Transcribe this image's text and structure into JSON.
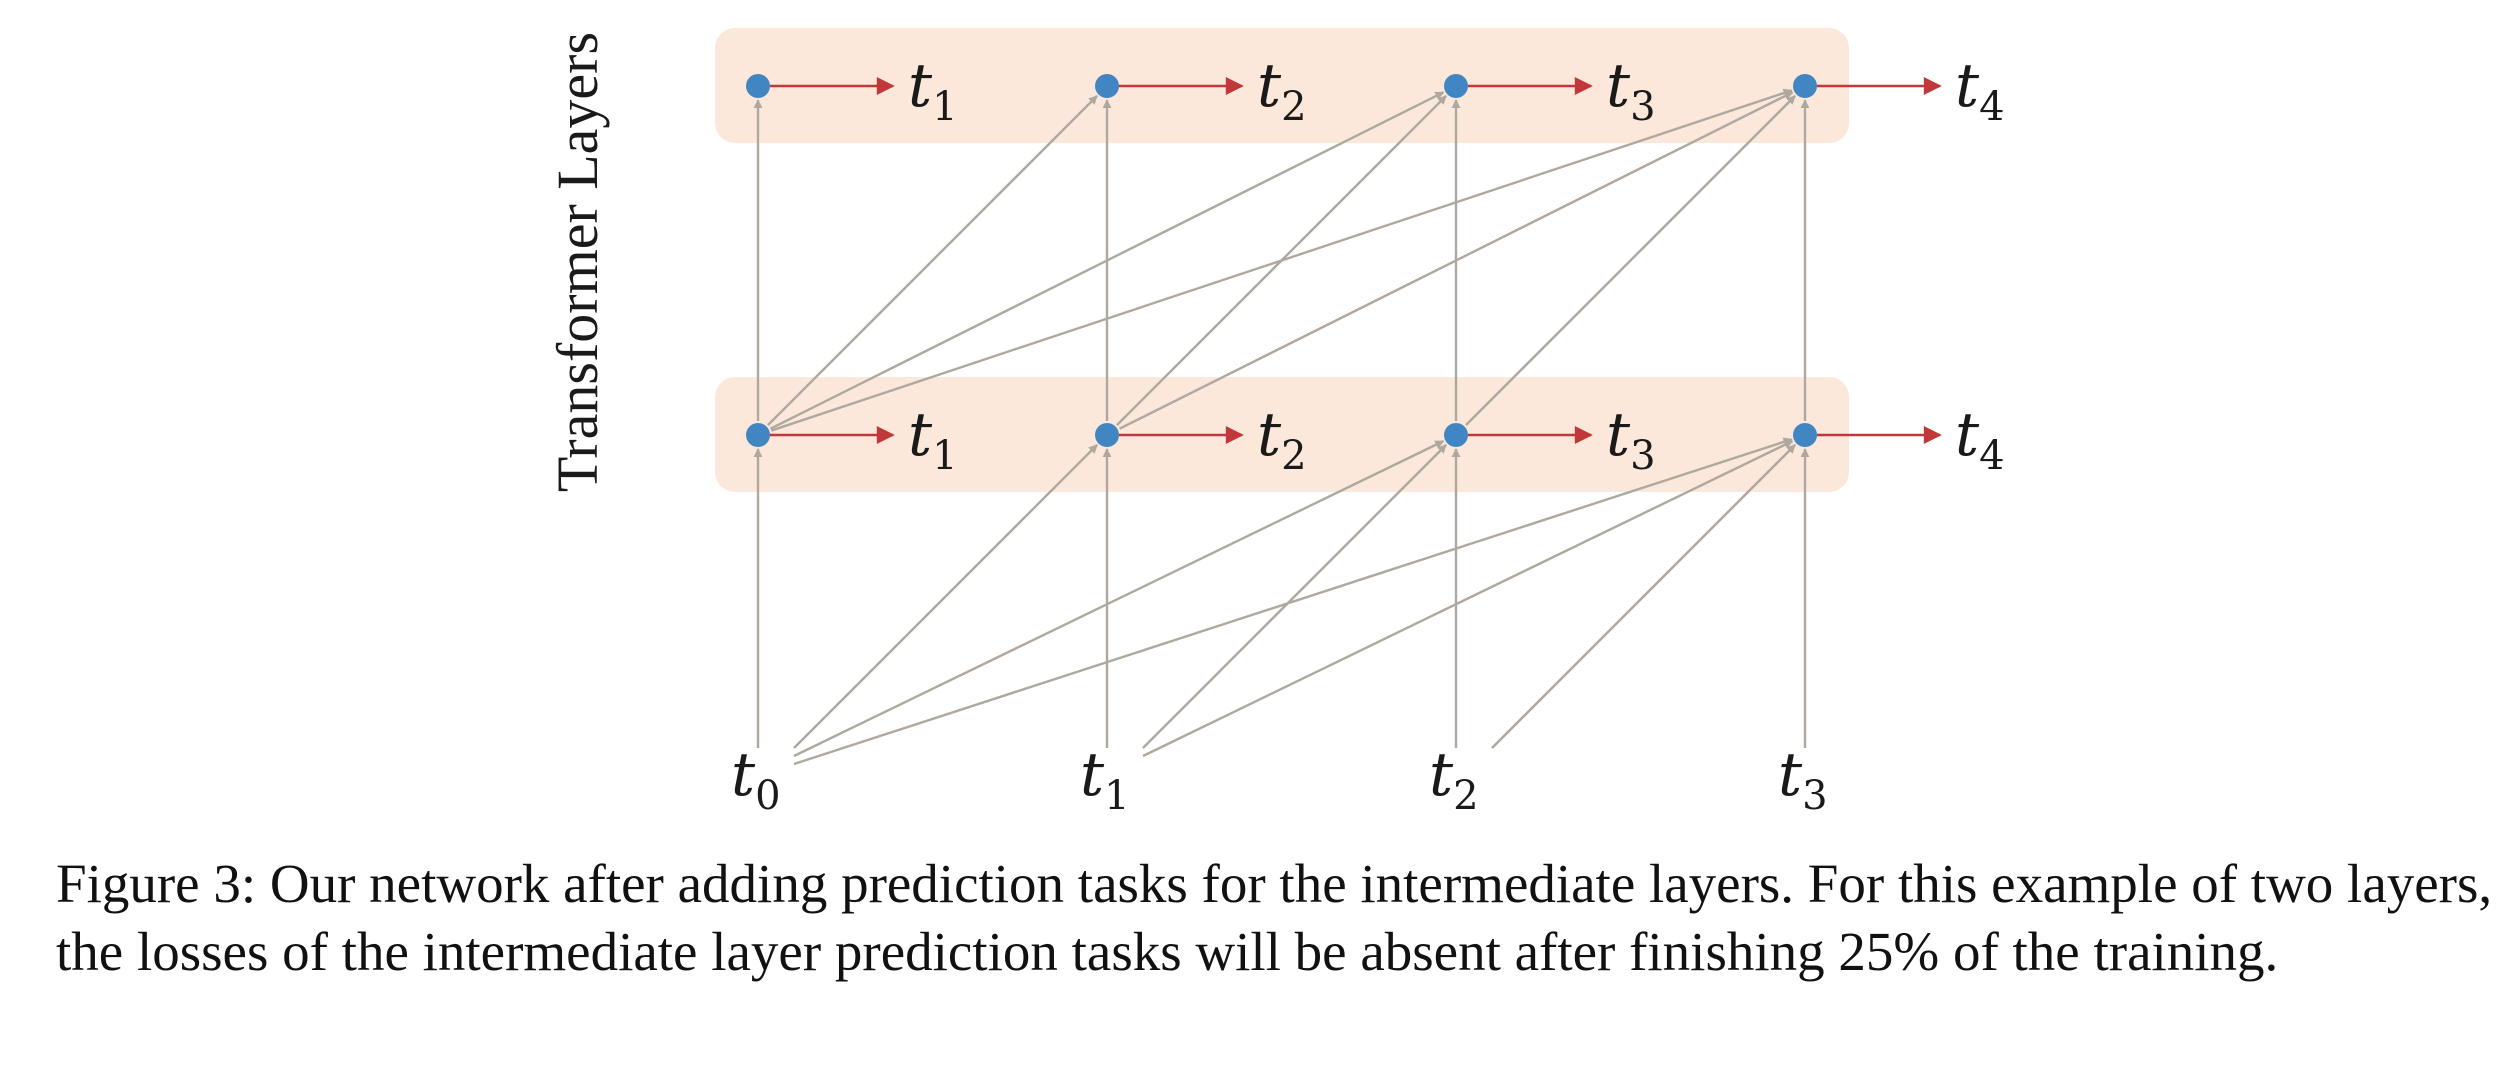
{
  "figure": {
    "ylabel": "Transformer Layers",
    "layers": [
      {
        "name": "layer-2",
        "outputs": [
          {
            "t": "t",
            "s": "1"
          },
          {
            "t": "t",
            "s": "2"
          },
          {
            "t": "t",
            "s": "3"
          },
          {
            "t": "t",
            "s": "4"
          }
        ]
      },
      {
        "name": "layer-1",
        "outputs": [
          {
            "t": "t",
            "s": "1"
          },
          {
            "t": "t",
            "s": "2"
          },
          {
            "t": "t",
            "s": "3"
          },
          {
            "t": "t",
            "s": "4"
          }
        ]
      }
    ],
    "inputs": [
      {
        "t": "t",
        "s": "0"
      },
      {
        "t": "t",
        "s": "1"
      },
      {
        "t": "t",
        "s": "2"
      },
      {
        "t": "t",
        "s": "3"
      }
    ],
    "colors": {
      "node": "#4186c2",
      "band": "#fbe8db",
      "edge": "#aea89f",
      "prediction": "#c1383a"
    }
  },
  "caption": "Figure 3: Our network after adding prediction tasks for the intermediate layers. For this example of two layers, the losses of the intermediate layer prediction tasks will be absent after finishing 25% of the training."
}
